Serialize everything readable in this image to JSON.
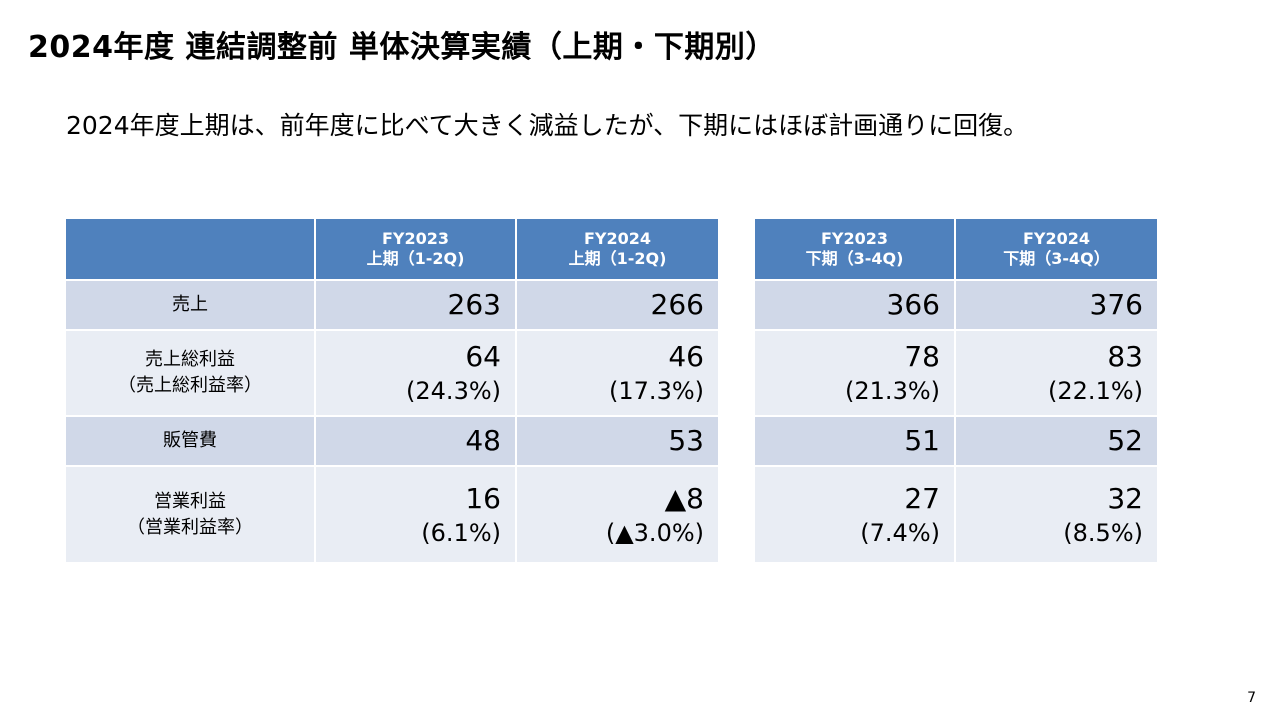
{
  "title": "2024年度 連結調整前 単体決算実績（上期・下期別）",
  "subtitle": "2024年度上期は、前年度に比べて大きく減益したが、下期にはほぼ計画通りに回復。",
  "row_labels": [
    [
      "売上"
    ],
    [
      "売上総利益",
      "（売上総利益率）"
    ],
    [
      "販管費"
    ],
    [
      "営業利益",
      "（営業利益率）"
    ]
  ],
  "first_half": {
    "headers": [
      {
        "line1": "FY2023",
        "line2": "上期（1-2Q)"
      },
      {
        "line1": "FY2024",
        "line2": "上期（1-2Q)"
      }
    ],
    "rows": [
      [
        {
          "value": "263"
        },
        {
          "value": "266"
        }
      ],
      [
        {
          "value": "64",
          "pct": "(24.3%)"
        },
        {
          "value": "46",
          "pct": "(17.3%)"
        }
      ],
      [
        {
          "value": "48"
        },
        {
          "value": "53"
        }
      ],
      [
        {
          "value": "16",
          "pct": "(6.1%)"
        },
        {
          "value": "▲8",
          "pct": "(▲3.0%)"
        }
      ]
    ]
  },
  "second_half": {
    "headers": [
      {
        "line1": "FY2023",
        "line2": "下期（3-4Q)"
      },
      {
        "line1": "FY2024",
        "line2": "下期（3-4Q）"
      }
    ],
    "rows": [
      [
        {
          "value": "366"
        },
        {
          "value": "376"
        }
      ],
      [
        {
          "value": "78",
          "pct": "(21.3%)"
        },
        {
          "value": "83",
          "pct": "(22.1%)"
        }
      ],
      [
        {
          "value": "51"
        },
        {
          "value": "52"
        }
      ],
      [
        {
          "value": "27",
          "pct": "(7.4%)"
        },
        {
          "value": "32",
          "pct": "(8.5%)"
        }
      ]
    ]
  },
  "page_number": "7",
  "colors": {
    "header_bg": "#4f81bd",
    "row_band_dark": "#d0d8e8",
    "row_band_light": "#e9edf4"
  }
}
